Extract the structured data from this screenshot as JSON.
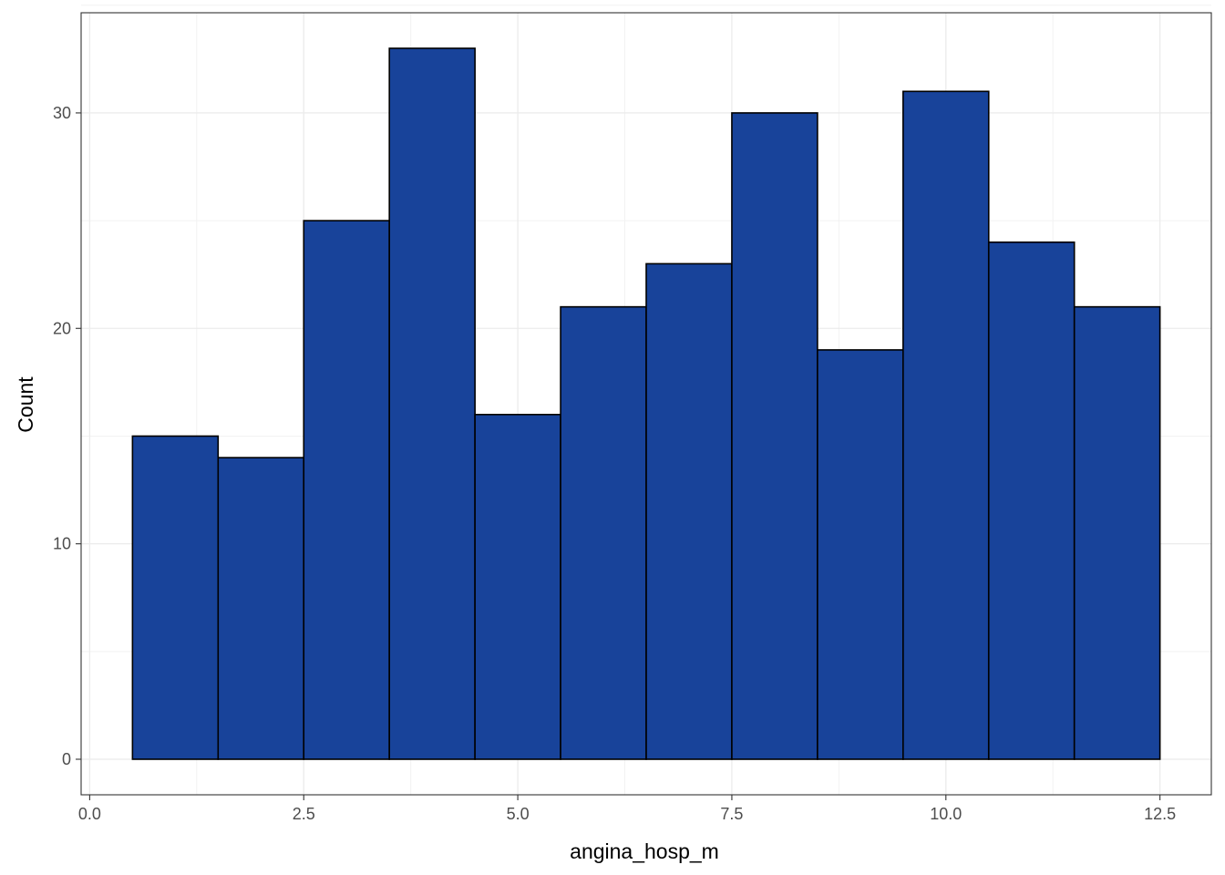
{
  "chart_data": {
    "type": "bar",
    "xlabel": "angina_hosp_m",
    "ylabel": "Count",
    "xlim": [
      -0.1,
      13.1
    ],
    "ylim": [
      -1.65,
      34.65
    ],
    "x_ticks": [
      0.0,
      2.5,
      5.0,
      7.5,
      10.0,
      12.5
    ],
    "x_tick_labels": [
      "0.0",
      "2.5",
      "5.0",
      "7.5",
      "10.0",
      "12.5"
    ],
    "y_ticks": [
      0,
      10,
      20,
      30
    ],
    "y_tick_labels": [
      "0",
      "10",
      "20",
      "30"
    ],
    "bins": [
      {
        "x0": 0.5,
        "x1": 1.5,
        "count": 15
      },
      {
        "x0": 1.5,
        "x1": 2.5,
        "count": 14
      },
      {
        "x0": 2.5,
        "x1": 3.5,
        "count": 25
      },
      {
        "x0": 3.5,
        "x1": 4.5,
        "count": 33
      },
      {
        "x0": 4.5,
        "x1": 5.5,
        "count": 16
      },
      {
        "x0": 5.5,
        "x1": 6.5,
        "count": 21
      },
      {
        "x0": 6.5,
        "x1": 7.5,
        "count": 23
      },
      {
        "x0": 7.5,
        "x1": 8.5,
        "count": 30
      },
      {
        "x0": 8.5,
        "x1": 9.5,
        "count": 19
      },
      {
        "x0": 9.5,
        "x1": 10.5,
        "count": 31
      },
      {
        "x0": 10.5,
        "x1": 11.5,
        "count": 24
      },
      {
        "x0": 11.5,
        "x1": 12.5,
        "count": 21
      }
    ],
    "bar_fill": "#18439a",
    "bar_stroke": "#000000",
    "grid": true,
    "legend": "none"
  }
}
